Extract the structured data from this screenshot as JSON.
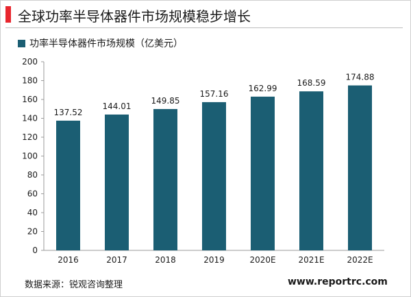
{
  "title": "全球功率半导体器件市场规模稳步增长",
  "colors": {
    "accent": "#e8262e",
    "bar": "#1b5e73"
  },
  "footer": {
    "source": "数据来源：锐观咨询整理",
    "site": "www.reportrc.com"
  },
  "chart_data": {
    "type": "bar",
    "categories": [
      "2016",
      "2017",
      "2018",
      "2019",
      "2020E",
      "2021E",
      "2022E"
    ],
    "series": [
      {
        "name": "功率半导体器件市场规模（亿美元）",
        "values": [
          137.52,
          144.01,
          149.85,
          157.16,
          162.99,
          168.59,
          174.88
        ]
      }
    ],
    "ylim": [
      0,
      200
    ],
    "yticks": [
      0,
      20,
      40,
      60,
      80,
      100,
      120,
      140,
      160,
      180,
      200
    ],
    "grid": false,
    "legend": "top-left"
  }
}
